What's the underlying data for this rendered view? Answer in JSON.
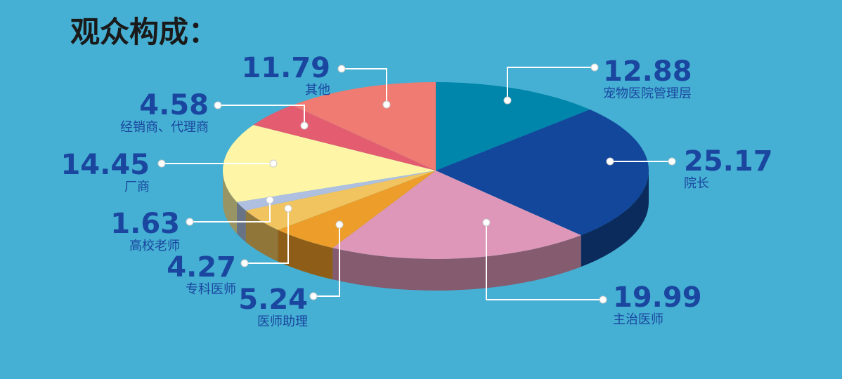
{
  "chart_data": {
    "type": "pie3d",
    "title": "观众构成：",
    "categories": [
      "宠物医院管理层",
      "院长",
      "主治医师",
      "医师助理",
      "专科医师",
      "高校老师",
      "厂商",
      "经销商、代理商",
      "其他"
    ],
    "values": [
      12.88,
      25.17,
      19.99,
      5.24,
      4.27,
      1.63,
      14.45,
      4.58,
      11.79
    ],
    "colors": [
      "#0086aa",
      "#12479b",
      "#de97b9",
      "#ec9d2a",
      "#f2c45f",
      "#aebfe0",
      "#fef6a6",
      "#e45c6f",
      "#f07b72"
    ]
  }
}
